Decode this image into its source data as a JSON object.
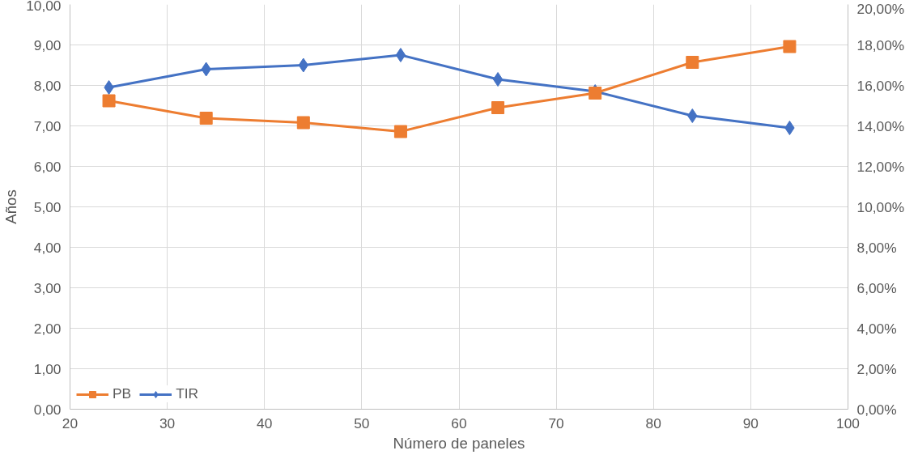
{
  "chart_data": {
    "type": "line",
    "xlabel": "Número de paneles",
    "ylabel": "Años",
    "x": [
      24,
      34,
      44,
      54,
      64,
      74,
      84,
      94
    ],
    "series": [
      {
        "name": "PB",
        "color": "#ed7d31",
        "marker": "square",
        "values": [
          7.62,
          7.19,
          7.08,
          6.86,
          7.45,
          7.81,
          8.57,
          8.96
        ]
      },
      {
        "name": "TIR",
        "color": "#4472c4",
        "marker": "diamond",
        "axis": "y2",
        "values": [
          15.9,
          16.8,
          17.0,
          17.5,
          16.3,
          15.7,
          14.5,
          13.9
        ]
      }
    ],
    "xlim": [
      20,
      100
    ],
    "xticks": [
      20,
      30,
      40,
      50,
      60,
      70,
      80,
      90,
      100
    ],
    "ylim": [
      0,
      10
    ],
    "yticks": [
      {
        "value": 0,
        "label": "0,00"
      },
      {
        "value": 1,
        "label": "1,00"
      },
      {
        "value": 2,
        "label": "2,00"
      },
      {
        "value": 3,
        "label": "3,00"
      },
      {
        "value": 4,
        "label": "4,00"
      },
      {
        "value": 5,
        "label": "5,00"
      },
      {
        "value": 6,
        "label": "6,00"
      },
      {
        "value": 7,
        "label": "7,00"
      },
      {
        "value": 8,
        "label": "8,00"
      },
      {
        "value": 9,
        "label": "9,00"
      },
      {
        "value": 10,
        "label": "10,00"
      }
    ],
    "y2lim": [
      0,
      20
    ],
    "y2ticks": [
      {
        "value": 0,
        "label": "0,00%"
      },
      {
        "value": 2,
        "label": "2,00%"
      },
      {
        "value": 4,
        "label": "4,00%"
      },
      {
        "value": 6,
        "label": "6,00%"
      },
      {
        "value": 8,
        "label": "8,00%"
      },
      {
        "value": 10,
        "label": "10,00%"
      },
      {
        "value": 12,
        "label": "12,00%"
      },
      {
        "value": 14,
        "label": "14,00%"
      },
      {
        "value": 16,
        "label": "16,00%"
      },
      {
        "value": 18,
        "label": "18,00%"
      },
      {
        "value": 20,
        "label": "20,00%"
      }
    ],
    "grid": true,
    "legend": "bottom left",
    "line_style": "solid"
  }
}
